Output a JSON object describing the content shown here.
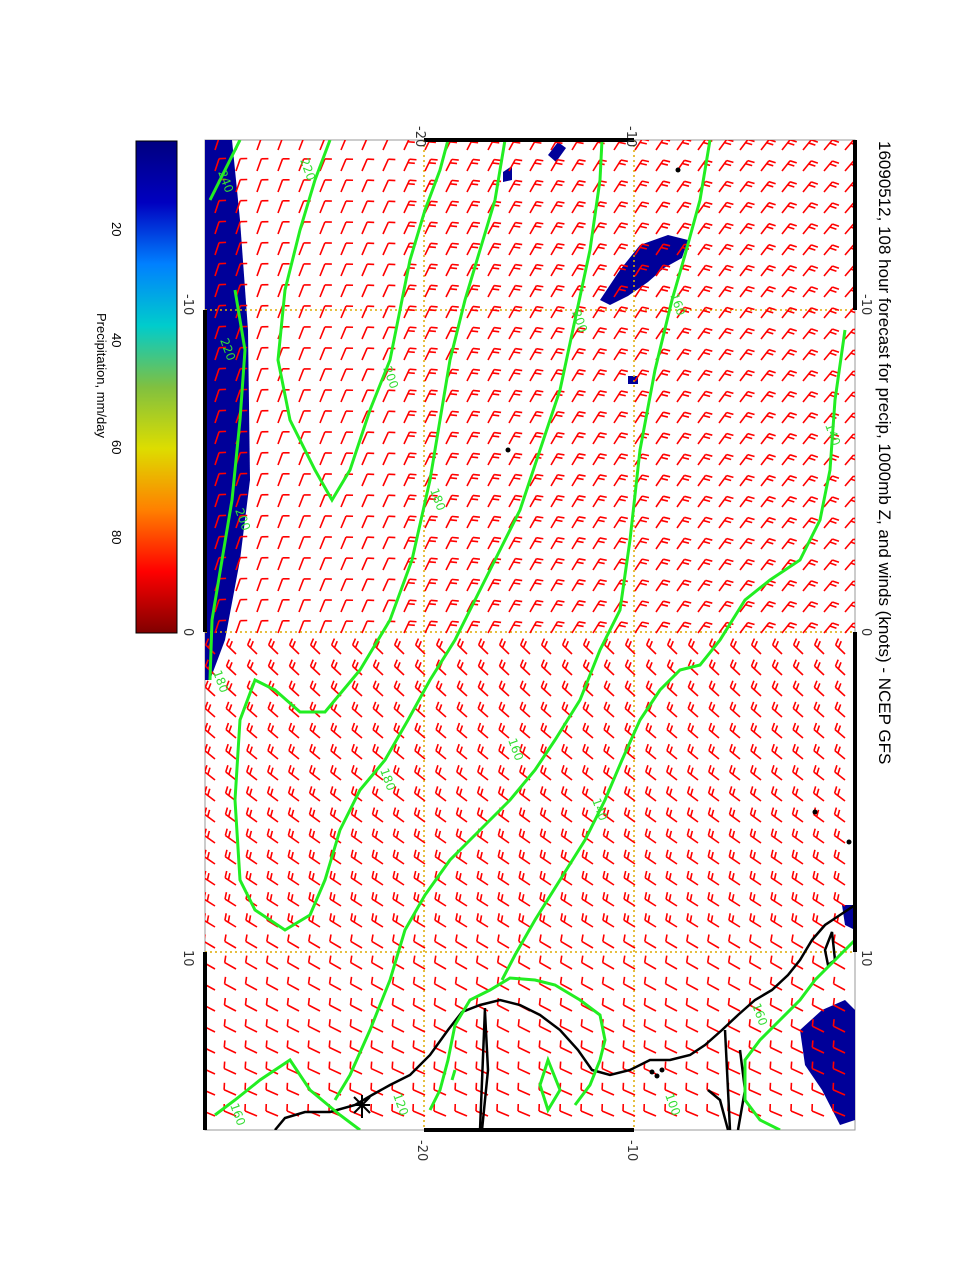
{
  "title": "16090512, 108 hour forecast for precip, 1000mb Z, and winds (knots) - NCEP GFS",
  "longitude_ticks": [
    "-20",
    "-10",
    "0",
    "10",
    "-20",
    "-10"
  ],
  "latitude_ticks": [
    "-10",
    "0",
    "10",
    "-10",
    "0",
    "10"
  ],
  "colorbar": {
    "label": "Precipitation, mm/day",
    "ticks": [
      "20",
      "40",
      "60",
      "80"
    ],
    "colors": [
      "#800000",
      "#ff0000",
      "#ff8000",
      "#dddd00",
      "#80c040",
      "#00cccc",
      "#0080ff",
      "#0000c0",
      "#000080"
    ]
  },
  "contour_labels": [
    "240",
    "220",
    "200",
    "220",
    "200",
    "180",
    "200",
    "180",
    "160",
    "140",
    "180",
    "160",
    "140",
    "160",
    "120",
    "100",
    "160"
  ],
  "colors": {
    "contour": "#22ee22",
    "barbs": "#ff0000",
    "precip": "#000099",
    "coast": "#000000",
    "grid": "#ddaa00"
  }
}
